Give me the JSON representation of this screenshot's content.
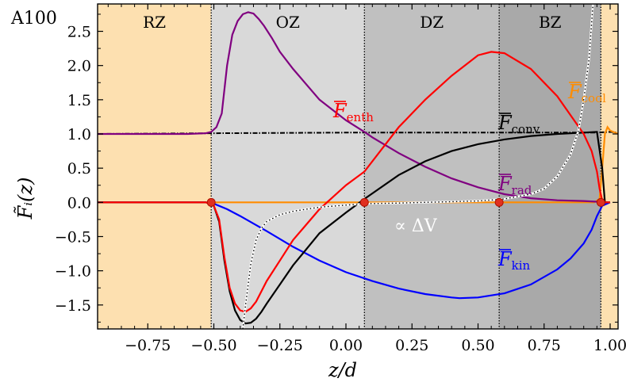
{
  "chart_data": {
    "type": "line",
    "panel_label": "A100",
    "xlabel": "z/d",
    "ylabel": "F̃_i(z)",
    "xlim": [
      -0.94,
      1.03
    ],
    "ylim": [
      -1.85,
      2.9
    ],
    "x_ticks": [
      "−0.75",
      "−0.50",
      "−0.25",
      "0.00",
      "0.25",
      "0.50",
      "0.75",
      "1.00"
    ],
    "x_tick_values": [
      -0.75,
      -0.5,
      -0.25,
      0.0,
      0.25,
      0.5,
      0.75,
      1.0
    ],
    "y_ticks": [
      "−1.5",
      "−1.0",
      "−0.5",
      "0.0",
      "0.5",
      "1.0",
      "1.5",
      "2.0",
      "2.5"
    ],
    "y_tick_values": [
      -1.5,
      -1.0,
      -0.5,
      0.0,
      0.5,
      1.0,
      1.5,
      2.0,
      2.5
    ],
    "zones": [
      {
        "name": "RZ",
        "x0": -0.94,
        "x1": -0.51,
        "color": "#fde0b0"
      },
      {
        "name": "OZ",
        "x0": -0.51,
        "x1": 0.07,
        "color": "#d9d9d9"
      },
      {
        "name": "DZ",
        "x0": 0.07,
        "x1": 0.58,
        "color": "#c0c0c0"
      },
      {
        "name": "BZ",
        "x0": 0.58,
        "x1": 0.965,
        "color": "#a9a9a9"
      },
      {
        "name": "",
        "x0": 0.965,
        "x1": 1.03,
        "color": "#fde0b0"
      }
    ],
    "boundary_markers": [
      -0.51,
      0.07,
      0.58,
      0.965
    ],
    "series": [
      {
        "name": "F_enth",
        "label_main": "F",
        "label_sub": "enth",
        "color": "#ff0000",
        "x": [
          -0.94,
          -0.6,
          -0.53,
          -0.5,
          -0.48,
          -0.46,
          -0.44,
          -0.42,
          -0.4,
          -0.38,
          -0.36,
          -0.34,
          -0.32,
          -0.3,
          -0.25,
          -0.2,
          -0.1,
          0.0,
          0.07,
          0.2,
          0.3,
          0.4,
          0.5,
          0.55,
          0.6,
          0.7,
          0.8,
          0.9,
          0.93,
          0.95,
          0.96,
          0.97,
          0.98,
          1.0
        ],
        "y": [
          0.0,
          0.0,
          0.0,
          -0.05,
          -0.25,
          -0.8,
          -1.25,
          -1.48,
          -1.58,
          -1.6,
          -1.55,
          -1.45,
          -1.3,
          -1.15,
          -0.85,
          -0.55,
          -0.1,
          0.25,
          0.45,
          1.1,
          1.5,
          1.85,
          2.15,
          2.2,
          2.18,
          1.95,
          1.55,
          1.0,
          0.75,
          0.45,
          0.2,
          0.03,
          0.0,
          0.0
        ]
      },
      {
        "name": "F_conv",
        "label_main": "F",
        "label_sub": "conv",
        "color": "#000000",
        "x": [
          -0.94,
          -0.6,
          -0.53,
          -0.5,
          -0.48,
          -0.46,
          -0.44,
          -0.42,
          -0.4,
          -0.38,
          -0.36,
          -0.34,
          -0.32,
          -0.3,
          -0.25,
          -0.2,
          -0.1,
          0.0,
          0.07,
          0.2,
          0.3,
          0.4,
          0.5,
          0.6,
          0.7,
          0.8,
          0.9,
          0.95,
          0.97,
          0.98,
          1.0
        ],
        "y": [
          0.0,
          0.0,
          0.0,
          -0.05,
          -0.28,
          -0.85,
          -1.3,
          -1.58,
          -1.72,
          -1.77,
          -1.76,
          -1.7,
          -1.6,
          -1.48,
          -1.2,
          -0.92,
          -0.45,
          -0.15,
          0.05,
          0.4,
          0.6,
          0.75,
          0.85,
          0.92,
          0.97,
          1.0,
          1.02,
          1.03,
          0.5,
          0.0,
          0.0
        ]
      },
      {
        "name": "F_rad",
        "label_main": "F",
        "label_sub": "rad",
        "color": "#800080",
        "x": [
          -0.94,
          -0.6,
          -0.53,
          -0.51,
          -0.49,
          -0.47,
          -0.45,
          -0.43,
          -0.41,
          -0.39,
          -0.37,
          -0.35,
          -0.33,
          -0.31,
          -0.28,
          -0.25,
          -0.2,
          -0.1,
          0.0,
          0.07,
          0.1,
          0.2,
          0.3,
          0.4,
          0.5,
          0.6,
          0.7,
          0.8,
          0.9,
          0.95,
          0.97,
          1.0
        ],
        "y": [
          1.0,
          1.0,
          1.01,
          1.03,
          1.1,
          1.3,
          2.0,
          2.45,
          2.65,
          2.75,
          2.78,
          2.76,
          2.68,
          2.58,
          2.4,
          2.2,
          1.95,
          1.5,
          1.2,
          1.03,
          0.95,
          0.72,
          0.52,
          0.35,
          0.22,
          0.12,
          0.06,
          0.03,
          0.02,
          0.01,
          0.0,
          0.0
        ]
      },
      {
        "name": "F_kin",
        "label_main": "F",
        "label_sub": "kin",
        "color": "#0000ff",
        "x": [
          -0.94,
          -0.6,
          -0.53,
          -0.5,
          -0.45,
          -0.4,
          -0.3,
          -0.2,
          -0.1,
          0.0,
          0.1,
          0.2,
          0.3,
          0.4,
          0.43,
          0.5,
          0.6,
          0.7,
          0.8,
          0.85,
          0.9,
          0.93,
          0.95,
          0.97,
          1.0
        ],
        "y": [
          0.0,
          0.0,
          0.0,
          -0.02,
          -0.1,
          -0.2,
          -0.42,
          -0.65,
          -0.85,
          -1.02,
          -1.15,
          -1.26,
          -1.34,
          -1.39,
          -1.4,
          -1.39,
          -1.33,
          -1.2,
          -0.98,
          -0.82,
          -0.6,
          -0.4,
          -0.2,
          -0.05,
          0.0
        ]
      },
      {
        "name": "F_cool",
        "label_main": "F",
        "label_sub": "cool",
        "color": "#ff8c00",
        "x": [
          -0.94,
          0.9,
          0.94,
          0.96,
          0.97,
          0.98,
          0.99,
          1.0,
          1.03
        ],
        "y": [
          0.0,
          0.0,
          0.0,
          0.05,
          0.5,
          1.0,
          1.1,
          1.05,
          1.0
        ]
      },
      {
        "name": "F_total",
        "style": "dashdot",
        "color": "#000000",
        "x": [
          -0.94,
          -0.5,
          0.0,
          0.5,
          0.9,
          0.95,
          1.0,
          1.03
        ],
        "y": [
          1.0,
          1.01,
          1.02,
          1.02,
          1.02,
          1.02,
          1.03,
          1.02
        ]
      },
      {
        "name": "grad_diff",
        "label": "∝ ΔV",
        "style": "dotted-on-white",
        "color": "#000000",
        "x": [
          -0.39,
          -0.38,
          -0.36,
          -0.34,
          -0.32,
          -0.3,
          -0.25,
          -0.2,
          -0.1,
          0.0,
          0.07,
          0.2,
          0.3,
          0.4,
          0.5,
          0.6,
          0.7,
          0.75,
          0.8,
          0.85,
          0.88,
          0.9,
          0.92,
          0.935
        ],
        "y": [
          -1.85,
          -1.5,
          -0.9,
          -0.55,
          -0.38,
          -0.28,
          -0.18,
          -0.13,
          -0.07,
          -0.04,
          -0.02,
          -0.01,
          0.0,
          0.01,
          0.02,
          0.05,
          0.12,
          0.2,
          0.38,
          0.7,
          1.05,
          1.5,
          2.1,
          2.9
        ]
      }
    ]
  }
}
